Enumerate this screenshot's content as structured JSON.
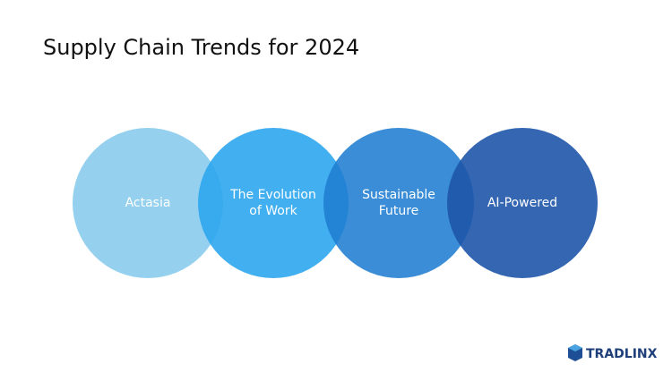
{
  "header": {
    "title": "Supply Chain Trends for 2024"
  },
  "nodes": [
    {
      "lines": [
        "Actasia"
      ]
    },
    {
      "lines": [
        "The Evolution",
        "of Work"
      ]
    },
    {
      "lines": [
        "Sustainable",
        "Future"
      ]
    },
    {
      "lines": [
        "AI-Powered"
      ]
    }
  ],
  "logo": {
    "text": "TRADLINX"
  }
}
